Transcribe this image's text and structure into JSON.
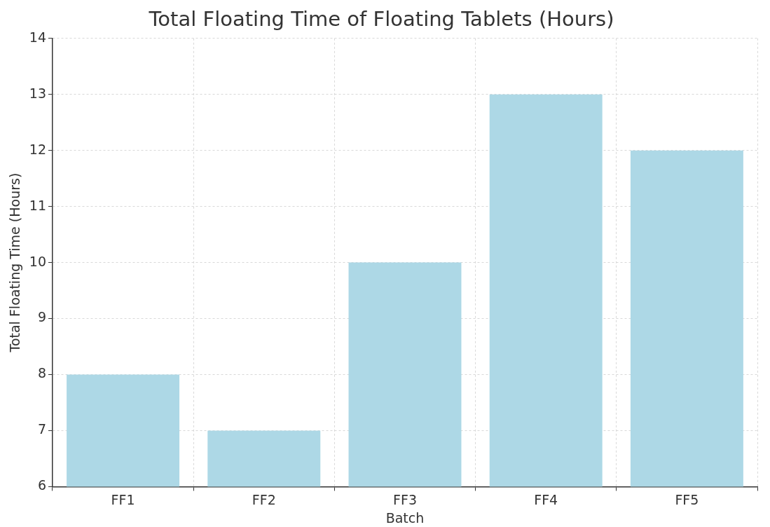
{
  "chart_data": {
    "type": "bar",
    "title": "Total Floating Time of Floating Tablets (Hours)",
    "xlabel": "Batch",
    "ylabel": "Total Floating Time (Hours)",
    "categories": [
      "FF1",
      "FF2",
      "FF3",
      "FF4",
      "FF5"
    ],
    "values": [
      8,
      7,
      10,
      13,
      12
    ],
    "color": "#add8e6",
    "ylim": [
      6,
      14
    ],
    "yticks": [
      6,
      7,
      8,
      9,
      10,
      11,
      12,
      13,
      14
    ],
    "grid": true
  }
}
